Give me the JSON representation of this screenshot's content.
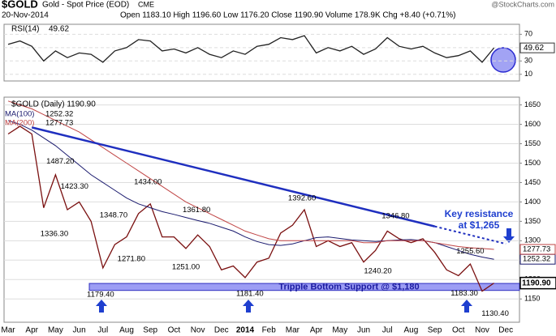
{
  "header": {
    "symbol": "$GOLD",
    "name": "Gold - Spot Price (EOD)",
    "exchange": "CME",
    "date": "20-Nov-2014",
    "quote": "Open 1183.10  High 1196.60  Low 1176.20  Close 1190.90  Volume 178.9K  Chg +8.40 (+0.71%)",
    "source": "@StockCharts.com"
  },
  "chart_data": [
    {
      "type": "line",
      "title": "RSI(14)",
      "ylim": [
        0,
        85
      ],
      "yticks": [
        10,
        30,
        50,
        70
      ],
      "grid": true,
      "series": [
        {
          "name": "RSI(14)",
          "color": "#222222",
          "values": [
            55,
            60,
            52,
            30,
            45,
            35,
            42,
            40,
            28,
            45,
            50,
            62,
            60,
            45,
            48,
            42,
            50,
            40,
            35,
            45,
            40,
            52,
            55,
            65,
            62,
            68,
            42,
            50,
            45,
            52,
            40,
            48,
            65,
            52,
            48,
            52,
            42,
            35,
            38,
            45,
            28,
            49.62,
            null
          ]
        }
      ]
    },
    {
      "type": "line",
      "title": "$GOLD (Daily) 1190.90",
      "categories": [
        "Mar",
        null,
        "Apr",
        null,
        "May",
        null,
        "Jun",
        null,
        "Jul",
        null,
        "Aug",
        null,
        "Sep",
        null,
        "Oct",
        null,
        "Nov",
        null,
        "Dec",
        null,
        "2014",
        null,
        "Feb",
        null,
        "Mar",
        null,
        "Apr",
        null,
        "May",
        null,
        "Jun",
        null,
        "Jul",
        null,
        "Aug",
        null,
        "Sep",
        null,
        "Oct",
        null,
        "Nov",
        null,
        "Dec"
      ],
      "ylim": [
        1090,
        1670
      ],
      "yticks": [
        1150,
        1200,
        1250,
        1300,
        1350,
        1400,
        1450,
        1500,
        1550,
        1600,
        1650
      ],
      "grid": true,
      "series": [
        {
          "name": "$GOLD",
          "color": "#7a1010",
          "values": [
            1575,
            1595,
            1575,
            1385,
            1470,
            1380,
            1400,
            1350,
            1230,
            1290,
            1310,
            1370,
            1395,
            1310,
            1310,
            1280,
            1315,
            1285,
            1225,
            1235,
            1205,
            1245,
            1255,
            1320,
            1340,
            1380,
            1285,
            1300,
            1285,
            1295,
            1245,
            1275,
            1325,
            1305,
            1295,
            1305,
            1270,
            1225,
            1210,
            1240,
            1170,
            1190.9,
            null
          ]
        },
        {
          "name": "MA(100)",
          "color": "#1a1a6e",
          "values": [
            1610,
            1600,
            1585,
            1565,
            1545,
            1520,
            1495,
            1470,
            1450,
            1430,
            1410,
            1395,
            1385,
            1375,
            1368,
            1360,
            1352,
            1345,
            1335,
            1325,
            1310,
            1298,
            1290,
            1288,
            1292,
            1300,
            1308,
            1310,
            1306,
            1302,
            1300,
            1298,
            1300,
            1302,
            1303,
            1300,
            1295,
            1285,
            1275,
            1265,
            1258,
            1252.32,
            null
          ]
        },
        {
          "name": "MA(200)",
          "color": "#c04545",
          "values": [
            1660,
            1650,
            1640,
            1625,
            1610,
            1595,
            1580,
            1560,
            1540,
            1520,
            1500,
            1480,
            1460,
            1440,
            1420,
            1400,
            1385,
            1370,
            1355,
            1340,
            1325,
            1315,
            1305,
            1300,
            1300,
            1300,
            1300,
            1300,
            1300,
            1300,
            1295,
            1295,
            1300,
            1300,
            1300,
            1300,
            1295,
            1290,
            1285,
            1282,
            1280,
            1277.73,
            null
          ]
        }
      ],
      "last_price": {
        "value": 1190.9,
        "label": "1190.90"
      },
      "trendline": {
        "color": "#1f2fbf",
        "x": [
          2,
          42
        ],
        "values": [
          1592,
          1292
        ]
      },
      "support": {
        "label": "Tripple Bottom Support @ $1,180",
        "color": "#7b7cf0",
        "from": 1172,
        "to": 1190
      },
      "resistance_note": [
        "Key resistance",
        "at $1,265"
      ],
      "annotations": [
        {
          "x": 4.4,
          "value": 1487.2,
          "label": "1487.20"
        },
        {
          "x": 3.9,
          "value": 1336.3,
          "label": "1336.30"
        },
        {
          "x": 5.6,
          "value": 1423.3,
          "label": "1423.30"
        },
        {
          "x": 8.9,
          "value": 1348.7,
          "label": "1348.70"
        },
        {
          "x": 10.4,
          "value": 1271.8,
          "label": "1271.80"
        },
        {
          "x": 11.8,
          "value": 1434,
          "label": "1434.00"
        },
        {
          "x": 15,
          "value": 1251,
          "label": "1251.00"
        },
        {
          "x": 15.9,
          "value": 1361.8,
          "label": "1361.80"
        },
        {
          "x": 7.8,
          "value": 1179.4,
          "label": "1179.40"
        },
        {
          "x": 20.4,
          "value": 1181.4,
          "label": "1181.40"
        },
        {
          "x": 24.8,
          "value": 1392.6,
          "label": "1392.60"
        },
        {
          "x": 31.2,
          "value": 1240.2,
          "label": "1240.20"
        },
        {
          "x": 32.7,
          "value": 1346.8,
          "label": "1346.80"
        },
        {
          "x": 38.5,
          "value": 1183.3,
          "label": "1183.30"
        },
        {
          "x": 39,
          "value": 1255.6,
          "label": "1255.60"
        },
        {
          "x": 41.1,
          "value": 1130.4,
          "label": "1130.40"
        }
      ]
    }
  ]
}
